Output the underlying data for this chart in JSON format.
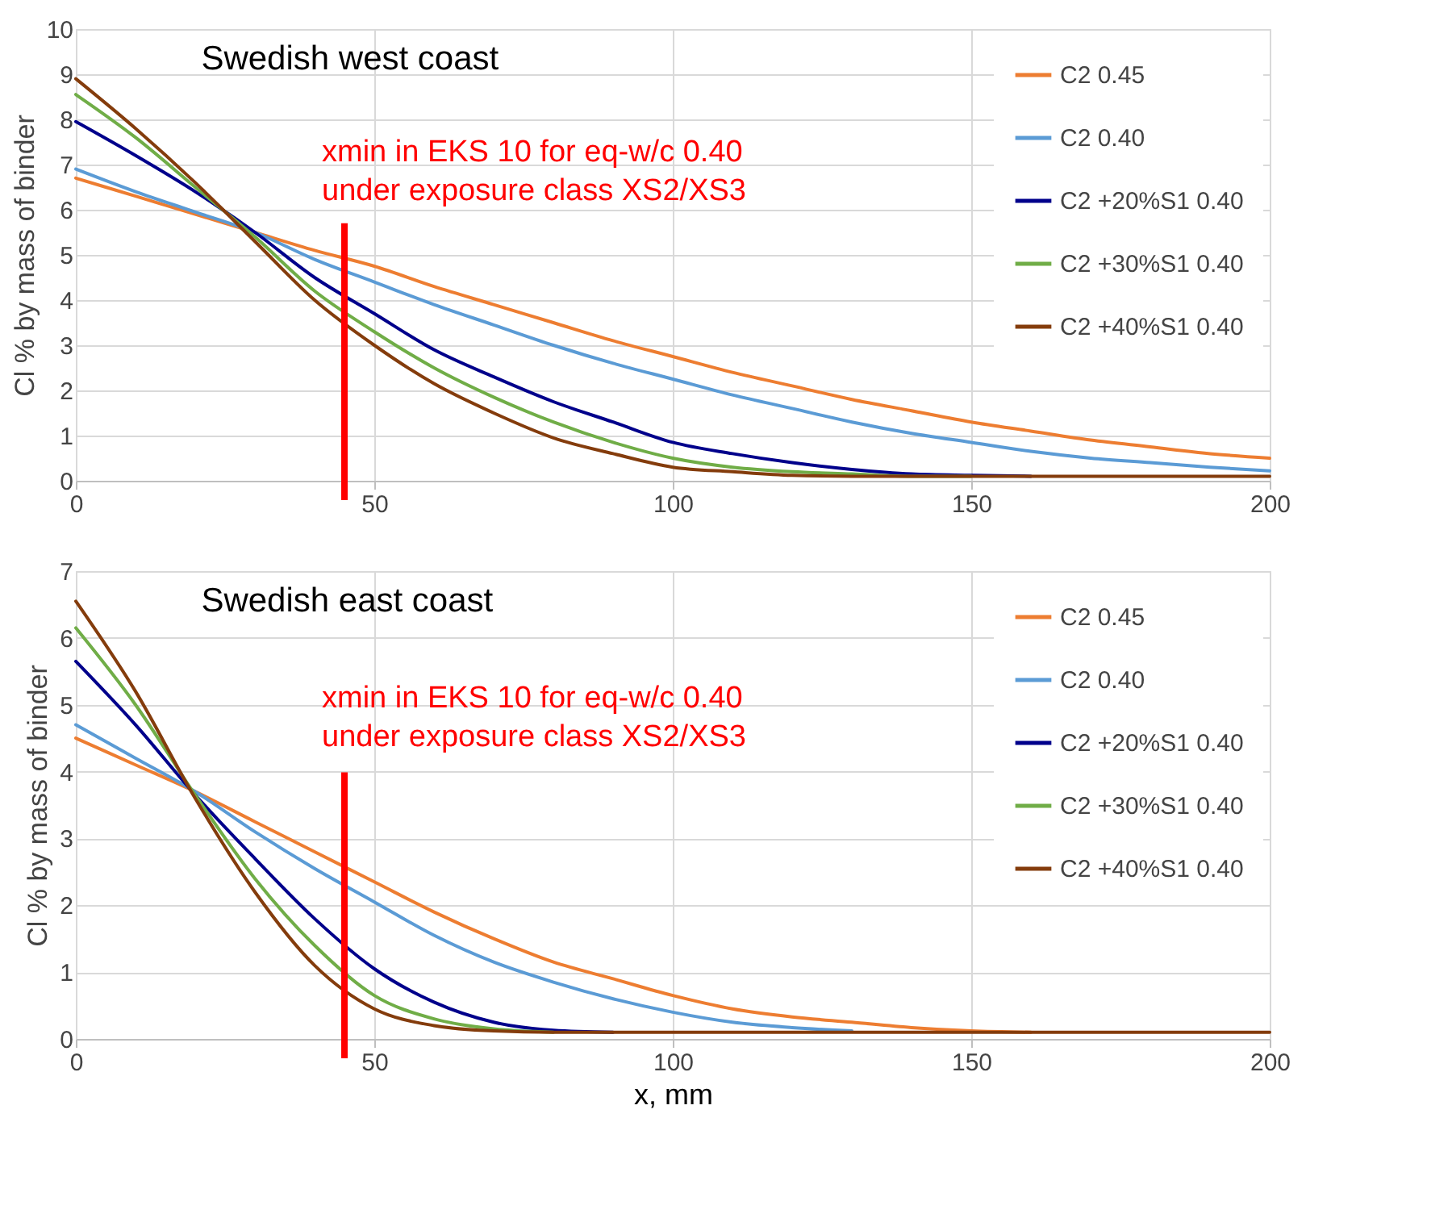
{
  "chart_data": [
    {
      "type": "line",
      "title": "Swedish west coast",
      "ylabel": "Cl % by mass of binder",
      "x": [
        0,
        10,
        20,
        30,
        40,
        50,
        60,
        70,
        80,
        90,
        100,
        110,
        120,
        130,
        140,
        150,
        160,
        170,
        180,
        190,
        200
      ],
      "series": [
        {
          "name": "C2 0.45",
          "color": "#ed7d31",
          "values": [
            6.7,
            6.3,
            5.9,
            5.5,
            5.1,
            4.75,
            4.3,
            3.9,
            3.5,
            3.1,
            2.75,
            2.4,
            2.1,
            1.8,
            1.55,
            1.3,
            1.1,
            0.9,
            0.75,
            0.6,
            0.5
          ]
        },
        {
          "name": "C2 0.40",
          "color": "#5b9bd5",
          "values": [
            6.9,
            6.4,
            5.95,
            5.5,
            4.9,
            4.4,
            3.9,
            3.45,
            3.0,
            2.6,
            2.25,
            1.9,
            1.6,
            1.3,
            1.05,
            0.85,
            0.65,
            0.5,
            0.4,
            0.3,
            0.22
          ]
        },
        {
          "name": "C2 +20%S1 0.40",
          "color": "#00008b",
          "values": [
            7.95,
            7.2,
            6.4,
            5.5,
            4.5,
            3.7,
            2.9,
            2.3,
            1.75,
            1.3,
            0.85,
            0.6,
            0.4,
            0.25,
            0.15,
            0.12,
            0.1,
            null,
            null,
            null,
            null
          ]
        },
        {
          "name": "C2 +30%S1 0.40",
          "color": "#70ad47",
          "values": [
            8.55,
            7.6,
            6.5,
            5.4,
            4.2,
            3.3,
            2.5,
            1.85,
            1.3,
            0.85,
            0.5,
            0.3,
            0.2,
            0.15,
            0.1,
            0.1,
            null,
            null,
            null,
            null,
            null
          ]
        },
        {
          "name": "C2 +40%S1 0.40",
          "color": "#843c0c",
          "values": [
            8.9,
            7.8,
            6.6,
            5.3,
            4.0,
            3.0,
            2.15,
            1.5,
            0.95,
            0.6,
            0.3,
            0.2,
            0.12,
            0.1,
            0.1,
            0.1,
            0.1,
            0.1,
            0.1,
            0.1,
            0.1
          ]
        }
      ],
      "xlim": [
        0,
        200
      ],
      "xticks": [
        0,
        50,
        100,
        150,
        200
      ],
      "ylim": [
        0,
        10
      ],
      "yticks": [
        0,
        1,
        2,
        3,
        4,
        5,
        6,
        7,
        8,
        9,
        10
      ],
      "ref_lines": [
        {
          "axis": "x",
          "value": 45,
          "label": "xmin in EKS 10 for eq-w/c 0.40\nunder exposure class XS2/XS3",
          "color": "#ff0000"
        }
      ],
      "grid": true,
      "legend": "top right"
    },
    {
      "type": "line",
      "title": "Swedish east coast",
      "ylabel": "Cl % by mass of binder",
      "xlabel": "x, mm",
      "x": [
        0,
        10,
        20,
        30,
        40,
        50,
        60,
        70,
        80,
        90,
        100,
        110,
        120,
        130,
        140,
        150,
        160,
        170,
        180,
        190,
        200
      ],
      "series": [
        {
          "name": "C2 0.45",
          "color": "#ed7d31",
          "values": [
            4.5,
            4.1,
            3.7,
            3.25,
            2.8,
            2.35,
            1.9,
            1.5,
            1.15,
            0.9,
            0.65,
            0.45,
            0.33,
            0.25,
            0.17,
            0.12,
            0.1,
            null,
            null,
            null,
            null
          ]
        },
        {
          "name": "C2 0.40",
          "color": "#5b9bd5",
          "values": [
            4.7,
            4.2,
            3.7,
            3.1,
            2.55,
            2.05,
            1.55,
            1.15,
            0.85,
            0.6,
            0.4,
            0.25,
            0.17,
            0.12,
            null,
            null,
            null,
            null,
            null,
            null,
            null
          ]
        },
        {
          "name": "C2 +20%S1 0.40",
          "color": "#00008b",
          "values": [
            5.65,
            4.7,
            3.65,
            2.7,
            1.8,
            1.05,
            0.55,
            0.25,
            0.13,
            0.1,
            null,
            null,
            null,
            null,
            null,
            null,
            null,
            null,
            null,
            null,
            null
          ]
        },
        {
          "name": "C2 +30%S1 0.40",
          "color": "#70ad47",
          "values": [
            6.15,
            5.0,
            3.65,
            2.4,
            1.4,
            0.65,
            0.3,
            0.15,
            0.1,
            null,
            null,
            null,
            null,
            null,
            null,
            null,
            null,
            null,
            null,
            null,
            null
          ]
        },
        {
          "name": "C2 +40%S1 0.40",
          "color": "#843c0c",
          "values": [
            6.55,
            5.2,
            3.6,
            2.2,
            1.1,
            0.45,
            0.2,
            0.12,
            0.1,
            0.1,
            0.1,
            0.1,
            0.1,
            0.1,
            0.1,
            0.1,
            0.1,
            0.1,
            0.1,
            0.1,
            0.1
          ]
        }
      ],
      "xlim": [
        0,
        200
      ],
      "xticks": [
        0,
        50,
        100,
        150,
        200
      ],
      "ylim": [
        0,
        7
      ],
      "yticks": [
        0,
        1,
        2,
        3,
        4,
        5,
        6,
        7
      ],
      "ref_lines": [
        {
          "axis": "x",
          "value": 45,
          "label": "xmin in EKS 10 for eq-w/c 0.40\nunder exposure class XS2/XS3",
          "color": "#ff0000"
        }
      ],
      "grid": true,
      "legend": "top right"
    }
  ]
}
